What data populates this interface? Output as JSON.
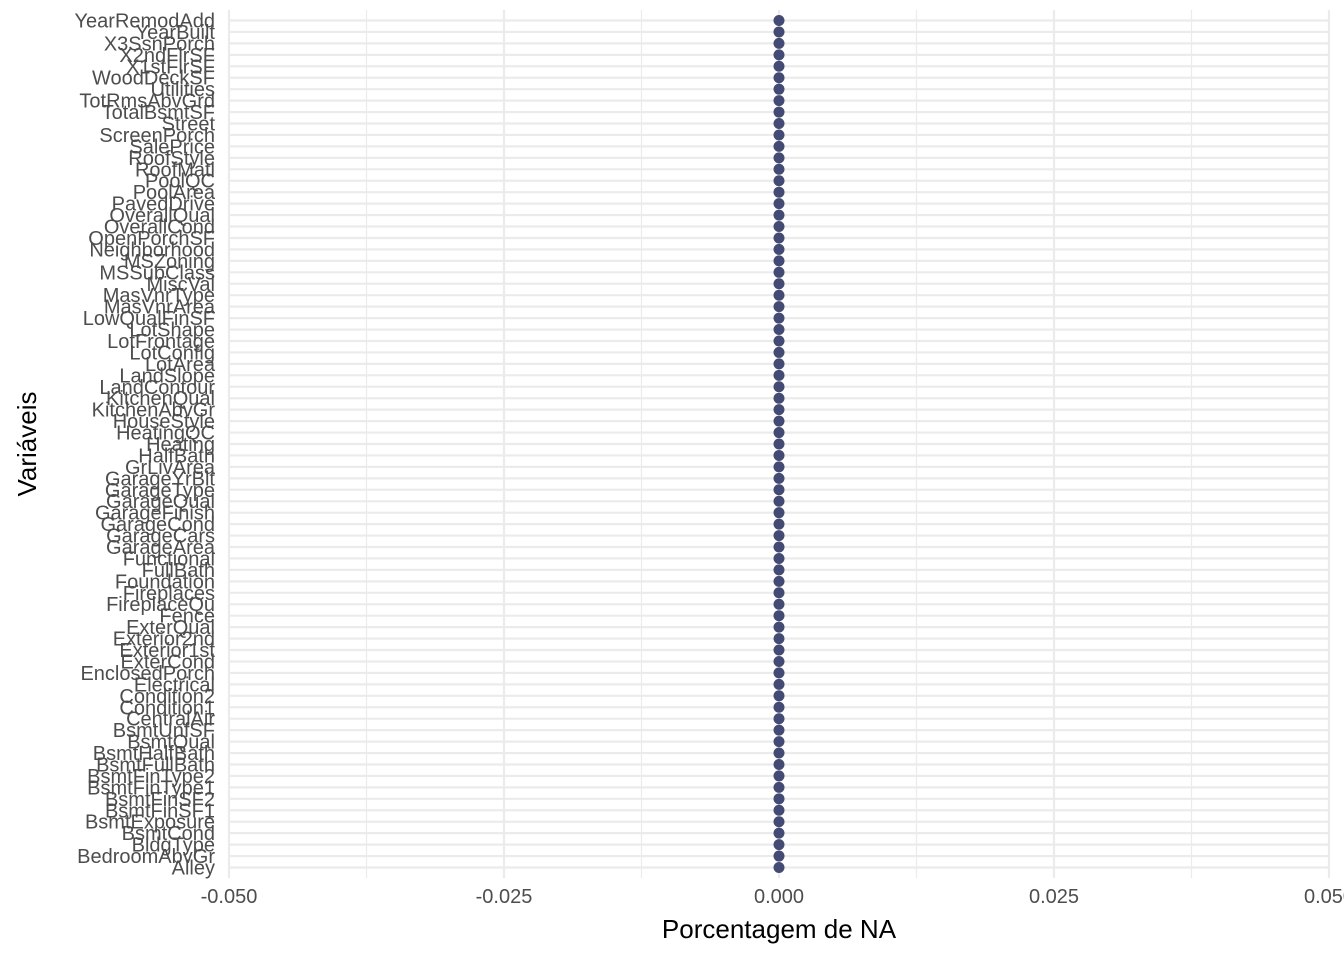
{
  "chart_data": {
    "type": "scatter",
    "title": "",
    "xlabel": "Porcentagem de NA",
    "ylabel": "Variáveis",
    "xlim": [
      -0.05,
      0.05
    ],
    "x_ticks": [
      -0.05,
      -0.025,
      0.0,
      0.025,
      0.05
    ],
    "x_tick_labels": [
      "-0.050",
      "-0.025",
      "0.000",
      "0.025",
      "0.050"
    ],
    "grid": true,
    "legend": "none",
    "point_color": "#434a73",
    "categories": [
      "Alley",
      "BedroomAbvGr",
      "BldgType",
      "BsmtCond",
      "BsmtExposure",
      "BsmtFinSF1",
      "BsmtFinSF2",
      "BsmtFinType1",
      "BsmtFinType2",
      "BsmtFullBath",
      "BsmtHalfBath",
      "BsmtQual",
      "BsmtUnfSF",
      "CentralAir",
      "Condition1",
      "Condition2",
      "Electrical",
      "EnclosedPorch",
      "ExterCond",
      "Exterior1st",
      "Exterior2nd",
      "ExterQual",
      "Fence",
      "FireplaceQu",
      "Fireplaces",
      "Foundation",
      "FullBath",
      "Functional",
      "GarageArea",
      "GarageCars",
      "GarageCond",
      "GarageFinish",
      "GarageQual",
      "GarageType",
      "GarageYrBlt",
      "GrLivArea",
      "HalfBath",
      "Heating",
      "HeatingQC",
      "HouseStyle",
      "KitchenAbvGr",
      "KitchenQual",
      "LandContour",
      "LandSlope",
      "LotArea",
      "LotConfig",
      "LotFrontage",
      "LotShape",
      "LowQualFinSF",
      "MasVnrArea",
      "MasVnrType",
      "MiscVal",
      "MSSubClass",
      "MSZoning",
      "Neighborhood",
      "OpenPorchSF",
      "OverallCond",
      "OverallQual",
      "PavedDrive",
      "PoolArea",
      "PoolQC",
      "RoofMatl",
      "RoofStyle",
      "SalePrice",
      "ScreenPorch",
      "Street",
      "TotalBsmtSF",
      "TotRmsAbvGrd",
      "Utilities",
      "WoodDeckSF",
      "X1stFlrSF",
      "X2ndFlrSF",
      "X3SsnPorch",
      "YearBuilt",
      "YearRemodAdd"
    ],
    "values": [
      0,
      0,
      0,
      0,
      0,
      0,
      0,
      0,
      0,
      0,
      0,
      0,
      0,
      0,
      0,
      0,
      0,
      0,
      0,
      0,
      0,
      0,
      0,
      0,
      0,
      0,
      0,
      0,
      0,
      0,
      0,
      0,
      0,
      0,
      0,
      0,
      0,
      0,
      0,
      0,
      0,
      0,
      0,
      0,
      0,
      0,
      0,
      0,
      0,
      0,
      0,
      0,
      0,
      0,
      0,
      0,
      0,
      0,
      0,
      0,
      0,
      0,
      0,
      0,
      0,
      0,
      0,
      0,
      0,
      0,
      0,
      0,
      0,
      0,
      0
    ]
  }
}
